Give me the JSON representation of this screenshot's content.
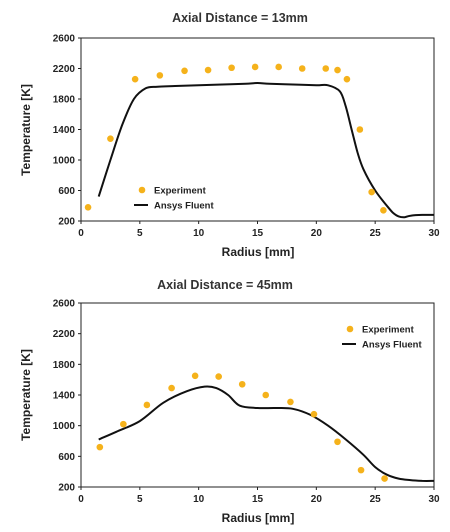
{
  "colors": {
    "experiment": "#F5B21B",
    "simulation": "#111111",
    "frame": "#222222"
  },
  "chart_data": [
    {
      "type": "scatter",
      "title": "Axial Distance = 13mm",
      "xlabel": "Radius [mm]",
      "ylabel": "Temperature [K]",
      "xlim": [
        0,
        30
      ],
      "ylim": [
        200,
        2600
      ],
      "xticks": [
        0,
        5,
        10,
        15,
        20,
        25,
        30
      ],
      "yticks": [
        200,
        600,
        1000,
        1400,
        1800,
        2200,
        2600
      ],
      "grid": false,
      "legend_position": "bottom-left",
      "series": [
        {
          "name": "Experiment",
          "kind": "scatter",
          "x": [
            0.6,
            2.5,
            4.6,
            6.7,
            8.8,
            10.8,
            12.8,
            14.8,
            16.8,
            18.8,
            20.8,
            21.8,
            22.6,
            23.7,
            24.7,
            25.7
          ],
          "y": [
            380,
            1280,
            2060,
            2110,
            2170,
            2180,
            2210,
            2220,
            2220,
            2200,
            2200,
            2180,
            2060,
            1400,
            580,
            340
          ]
        },
        {
          "name": "Ansys Fluent",
          "kind": "line",
          "x": [
            1.5,
            2.5,
            3.5,
            4.5,
            5.5,
            6.5,
            8,
            10,
            12,
            14,
            15,
            16,
            18,
            20,
            21,
            22,
            22.5,
            23,
            23.5,
            24,
            25,
            26,
            26.5,
            27,
            27.5,
            28,
            29,
            30
          ],
          "y": [
            520,
            1000,
            1460,
            1800,
            1940,
            1960,
            1970,
            1980,
            1990,
            2000,
            2010,
            2000,
            1990,
            1980,
            1980,
            1900,
            1700,
            1400,
            1100,
            880,
            600,
            400,
            310,
            260,
            250,
            270,
            280,
            280
          ]
        }
      ]
    },
    {
      "type": "scatter",
      "title": "Axial Distance = 45mm",
      "xlabel": "Radius [mm]",
      "ylabel": "Temperature [K]",
      "xlim": [
        0,
        30
      ],
      "ylim": [
        200,
        2600
      ],
      "xticks": [
        0,
        5,
        10,
        15,
        20,
        25,
        30
      ],
      "yticks": [
        200,
        600,
        1000,
        1400,
        1800,
        2200,
        2600
      ],
      "grid": false,
      "legend_position": "top-right",
      "series": [
        {
          "name": "Experiment",
          "kind": "scatter",
          "x": [
            1.6,
            3.6,
            5.6,
            7.7,
            9.7,
            11.7,
            13.7,
            15.7,
            17.8,
            19.8,
            21.8,
            23.8,
            25.8
          ],
          "y": [
            720,
            1020,
            1270,
            1490,
            1650,
            1640,
            1540,
            1400,
            1310,
            1150,
            790,
            420,
            310
          ]
        },
        {
          "name": "Ansys Fluent",
          "kind": "line",
          "x": [
            1.5,
            3,
            5,
            7,
            9,
            10.5,
            11.5,
            12.5,
            13.5,
            15,
            16.5,
            18,
            19.5,
            21,
            22.5,
            24,
            25,
            26,
            27,
            28,
            29,
            30
          ],
          "y": [
            820,
            920,
            1060,
            1300,
            1450,
            1510,
            1490,
            1400,
            1260,
            1230,
            1230,
            1220,
            1140,
            1000,
            820,
            620,
            460,
            360,
            310,
            290,
            280,
            280
          ]
        }
      ]
    }
  ]
}
